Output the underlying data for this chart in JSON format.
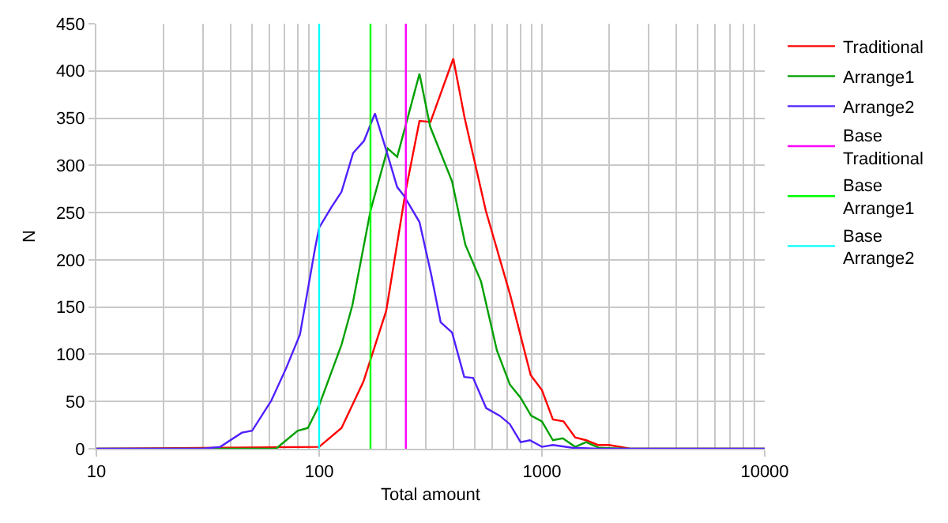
{
  "chart_data": {
    "type": "line",
    "xlabel": "Total amount",
    "ylabel": "N",
    "log": "x",
    "xlim": [
      10,
      10000
    ],
    "xticks": [
      10,
      100,
      1000,
      10000
    ],
    "ylim": [
      0,
      450
    ],
    "yticks": [
      0,
      50,
      100,
      150,
      200,
      250,
      300,
      350,
      400,
      450
    ],
    "grid": true,
    "legend": "right",
    "marker": "none",
    "line_style": "solid",
    "series": [
      {
        "name": "Traditional",
        "color": "#ff0000",
        "x": [
          10,
          100,
          126,
          158,
          200,
          245,
          282,
          316,
          400,
          450,
          560,
          720,
          890,
          1000,
          1120,
          1250,
          1410,
          1580,
          1780,
          2000,
          2500,
          10000
        ],
        "values": [
          0,
          2,
          22,
          71,
          146,
          274,
          347,
          346,
          413,
          350,
          252,
          163,
          78,
          62,
          31,
          29,
          12,
          9,
          4,
          4,
          0,
          0
        ]
      },
      {
        "name": "Arrange1",
        "color": "#00a000",
        "x": [
          10,
          64,
          80,
          89,
          100,
          126,
          141,
          170,
          203,
          224,
          282,
          315,
          395,
          453,
          533,
          628,
          718,
          802,
          894,
          1000,
          1120,
          1240,
          1410,
          1580,
          1800,
          2400,
          10000
        ],
        "values": [
          0,
          0,
          19,
          22,
          46,
          110,
          152,
          252,
          318,
          309,
          397,
          341,
          283,
          216,
          177,
          104,
          68,
          54,
          35,
          29,
          9,
          11,
          2,
          7,
          1,
          0,
          0
        ]
      },
      {
        "name": "Arrange2",
        "color": "#5020ff",
        "x": [
          10,
          30,
          36,
          45,
          50,
          61,
          71,
          82,
          96,
          100,
          113,
          126,
          142,
          159,
          178,
          200,
          224,
          240,
          282,
          318,
          351,
          395,
          448,
          491,
          562,
          646,
          718,
          802,
          883,
          1000,
          1120,
          1370,
          1800,
          10000
        ],
        "values": [
          0,
          0,
          2,
          17,
          19,
          51,
          85,
          121,
          213,
          234,
          255,
          272,
          313,
          326,
          355,
          316,
          277,
          268,
          240,
          185,
          134,
          123,
          76,
          75,
          43,
          35,
          26,
          7,
          9,
          2,
          4,
          1,
          0,
          0
        ]
      },
      {
        "name": "Base Traditional",
        "color": "#ff00ff",
        "x": [
          245,
          245
        ],
        "values": [
          0,
          450
        ]
      },
      {
        "name": "Base Arrange1",
        "color": "#00ff00",
        "x": [
          170,
          170
        ],
        "values": [
          0,
          450
        ]
      },
      {
        "name": "Base Arrange2",
        "color": "#00ffff",
        "x": [
          100,
          100
        ],
        "values": [
          0,
          450
        ]
      }
    ]
  }
}
